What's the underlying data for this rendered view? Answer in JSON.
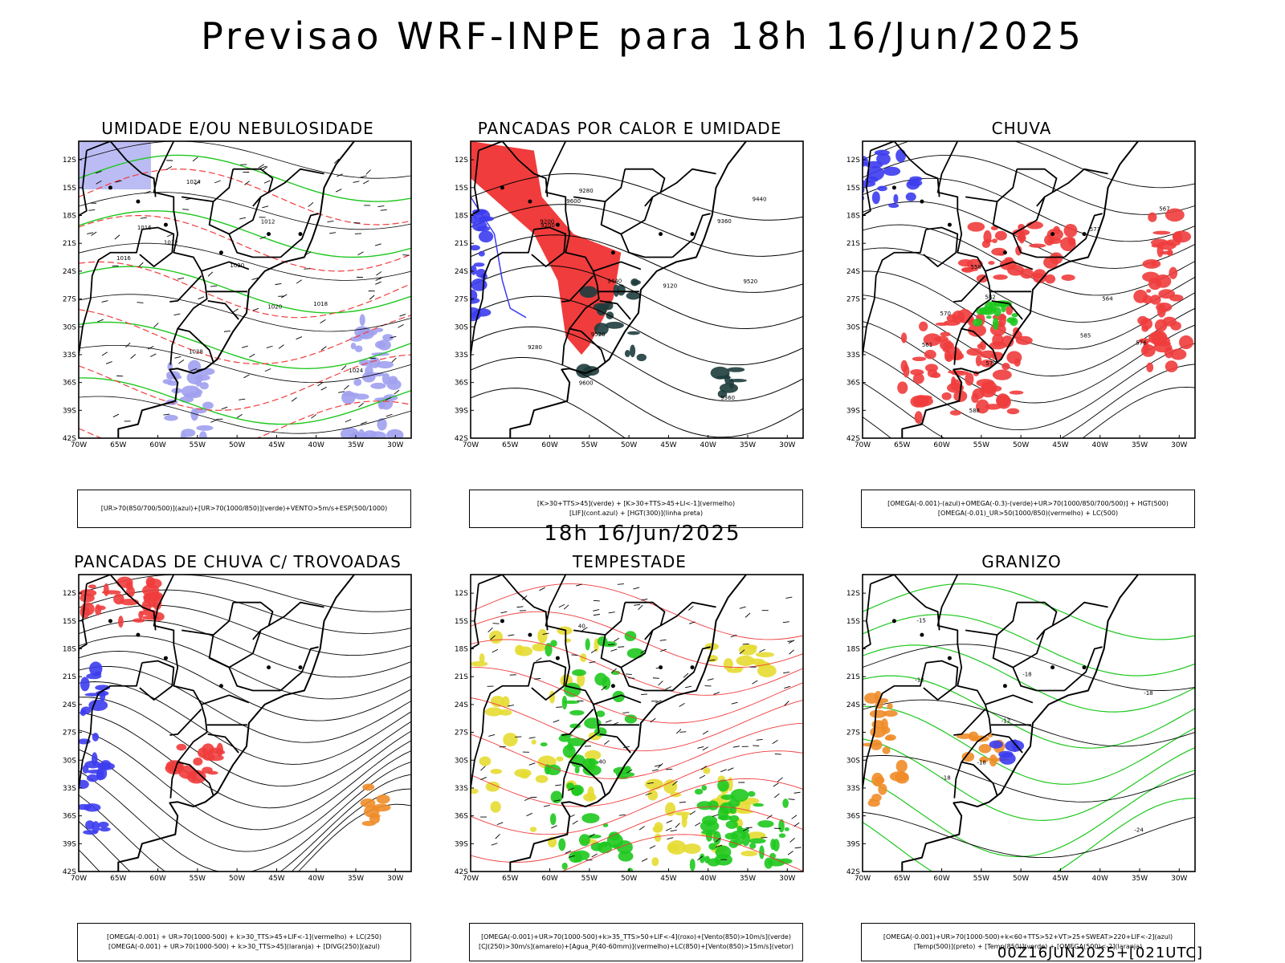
{
  "title": "Previsao WRF-INPE  para 18h 16/Jun/2025",
  "middle_date": "18h 16/Jun/2025",
  "footer_run": "00Z16JUN2025+[021UTC]",
  "colors": {
    "red": "#f03c3c",
    "blue": "#3c3cf0",
    "green": "#1ec81e",
    "lightblue": "#a0a0f0",
    "yellow": "#e6dc32",
    "orange": "#f08c28",
    "darkteal": "#1e3c3c"
  },
  "chart_data": [
    {
      "type": "map",
      "title": "UMIDADE E/OU NEBULOSIDADE",
      "x_ticks": [
        "70W",
        "65W",
        "60W",
        "55W",
        "50W",
        "45W",
        "40W",
        "35W",
        "30W"
      ],
      "y_ticks": [
        "12S",
        "15S",
        "18S",
        "21S",
        "24S",
        "27S",
        "30S",
        "33S",
        "36S",
        "39S",
        "42S"
      ],
      "lon_range": [
        -70,
        -28
      ],
      "lat_range": [
        -42,
        -10
      ],
      "contour_labels": [
        "1012",
        "1016",
        "1020",
        "1024",
        "1028",
        "1012",
        "1016",
        "1020",
        "1024",
        "1018"
      ],
      "caption": [
        "[UR>70(850/700/500)](azul)+[UR>70(1000/850)](verde)+VENTO>5m/s+ESP(500/1000)"
      ]
    },
    {
      "type": "map",
      "title": "PANCADAS POR CALOR E UMIDADE",
      "x_ticks": [
        "70W",
        "65W",
        "60W",
        "55W",
        "50W",
        "45W",
        "40W",
        "35W",
        "30W"
      ],
      "y_ticks": [
        "12S",
        "15S",
        "18S",
        "21S",
        "24S",
        "27S",
        "30S",
        "33S",
        "36S",
        "39S",
        "42S"
      ],
      "lon_range": [
        -70,
        -28
      ],
      "lat_range": [
        -42,
        -10
      ],
      "contour_labels": [
        "9600",
        "9520",
        "9440",
        "9360",
        "9280",
        "9200",
        "9120",
        "9600",
        "9520",
        "9440",
        "9360",
        "9280",
        "9200"
      ],
      "caption": [
        "[K>30+TTS>45](verde) + [K>30+TTS>45+LI<-1](vermelho)",
        "[LIF](cont.azul) + [HGT(300)](linha preta)"
      ]
    },
    {
      "type": "map",
      "title": "CHUVA",
      "x_ticks": [
        "70W",
        "65W",
        "60W",
        "55W",
        "50W",
        "45W",
        "40W",
        "35W",
        "30W"
      ],
      "y_ticks": [
        "12S",
        "15S",
        "18S",
        "21S",
        "24S",
        "27S",
        "30S",
        "33S",
        "36S",
        "39S",
        "42S"
      ],
      "lon_range": [
        -70,
        -28
      ],
      "lat_range": [
        -42,
        -10
      ],
      "contour_labels": [
        "588",
        "585",
        "582",
        "579",
        "576",
        "573",
        "570",
        "567",
        "564",
        "561",
        "558"
      ],
      "caption": [
        "[OMEGA(-0.001)-(azul)+OMEGA(-0.3)-(verde)+UR>70(1000/850/700/500)] + HGT(500)",
        "[OMEGA(-0.01)_UR>50(1000/850)(vermelho) + LC(500)"
      ]
    },
    {
      "type": "map",
      "title": "PANCADAS DE CHUVA C/ TROVOADAS",
      "x_ticks": [
        "70W",
        "65W",
        "60W",
        "55W",
        "50W",
        "45W",
        "40W",
        "35W",
        "30W"
      ],
      "y_ticks": [
        "12S",
        "15S",
        "18S",
        "21S",
        "24S",
        "27S",
        "30S",
        "33S",
        "36S",
        "39S",
        "42S"
      ],
      "lon_range": [
        -70,
        -28
      ],
      "lat_range": [
        -42,
        -10
      ],
      "contour_labels": [],
      "caption": [
        "[OMEGA(-0.001) + UR>70(1000-500) + k>30_TTS>45+LIF<-1](vermelho) + LC(250)",
        "[OMEGA(-0.001) + UR>70(1000-500) + k>30_TTS>45](laranja) + [DIVG(250)](azul)"
      ]
    },
    {
      "type": "map",
      "title": "TEMPESTADE",
      "x_ticks": [
        "70W",
        "65W",
        "60W",
        "55W",
        "50W",
        "45W",
        "40W",
        "35W",
        "30W"
      ],
      "y_ticks": [
        "12S",
        "15S",
        "18S",
        "21S",
        "24S",
        "27S",
        "30S",
        "33S",
        "36S",
        "39S",
        "42S"
      ],
      "lon_range": [
        -70,
        -28
      ],
      "lat_range": [
        -42,
        -10
      ],
      "contour_labels": [
        "40",
        "40"
      ],
      "caption": [
        "[OMEGA(-0.001)+UR>70(1000-500)+k>35_TTS>50+LIF<-4](roxo)+[Vento(850)>10m/s](verde)",
        "[CJ(250)>30m/s](amarelo)+[Agua_P(40-60mm)](vermelho)+LC(850)+[Vento(850)>15m/s](vetor)"
      ]
    },
    {
      "type": "map",
      "title": "GRANIZO",
      "x_ticks": [
        "70W",
        "65W",
        "60W",
        "55W",
        "50W",
        "45W",
        "40W",
        "35W",
        "30W"
      ],
      "y_ticks": [
        "12S",
        "15S",
        "18S",
        "21S",
        "24S",
        "27S",
        "30S",
        "33S",
        "36S",
        "39S",
        "42S"
      ],
      "lon_range": [
        -70,
        -28
      ],
      "lat_range": [
        -42,
        -10
      ],
      "contour_labels": [
        "-12",
        "-12",
        "-18",
        "-18",
        "-18",
        "-18",
        "-24",
        "-15"
      ],
      "caption": [
        "[OMEGA(-0.001)+UR>70(1000-500)+k<60+TTS>52+VT>25+SWEAT>220+LIF<-2](azul)",
        "[Temp(500)](preto) + [Temp(850)](verde) + [OMEGA(500)<-2](laranja)"
      ]
    }
  ]
}
